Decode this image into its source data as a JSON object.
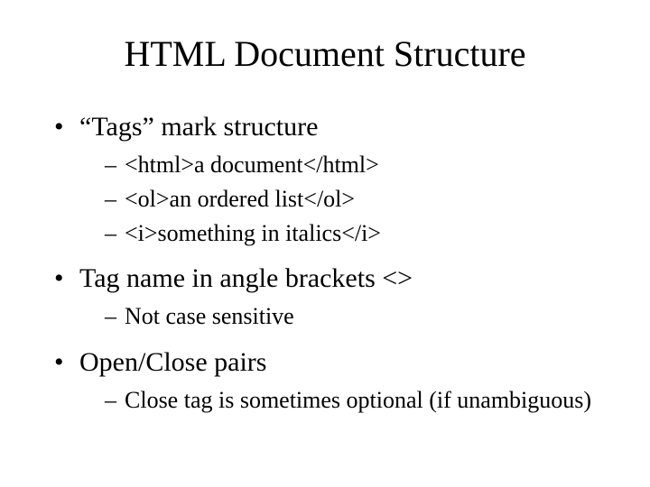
{
  "title": "HTML Document Structure",
  "bullets": [
    {
      "text": "“Tags” mark structure",
      "sub": [
        "<html>a document</html>",
        "<ol>an ordered list</ol>",
        "<i>something in italics</i>"
      ]
    },
    {
      "text": "Tag name in angle brackets <>",
      "sub": [
        "Not case sensitive"
      ]
    },
    {
      "text": "Open/Close pairs",
      "sub": [
        "Close tag is sometimes optional (if unambiguous)"
      ]
    }
  ],
  "colors": {
    "background": "#ffffff",
    "text": "#000000"
  },
  "typography": {
    "family": "Times New Roman",
    "title_size_pt": 40,
    "level1_size_pt": 30,
    "level2_size_pt": 26
  }
}
